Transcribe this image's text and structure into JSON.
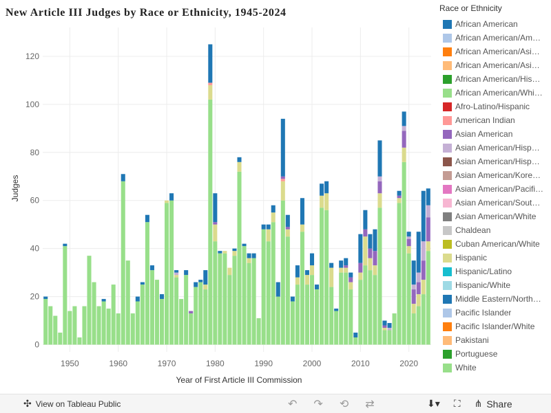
{
  "title": "New Article III Judges by Race or Ethnicity, 1945-2024",
  "legend_title": "Race or Ethnicity",
  "toolbar": {
    "view_label": "View on Tableau Public",
    "share_label": "Share",
    "undo_icon": "undo-icon",
    "redo_icon": "redo-icon",
    "revert_icon": "revert-icon",
    "refresh_icon": "refresh-icon",
    "download_icon": "download-icon",
    "fullscreen_icon": "fullscreen-icon",
    "share_icon": "share-icon",
    "tableau_icon": "tableau-logo-icon"
  },
  "legend": [
    {
      "label": "African American",
      "color": "#1f77b4"
    },
    {
      "label": "African American/Am…",
      "color": "#aec7e8"
    },
    {
      "label": "African American/Asi…",
      "color": "#ff7f0e"
    },
    {
      "label": "African American/Asi…",
      "color": "#ffbb78"
    },
    {
      "label": "African American/His…",
      "color": "#2ca02c"
    },
    {
      "label": "African American/Whi…",
      "color": "#98df8a"
    },
    {
      "label": "Afro-Latino/Hispanic",
      "color": "#d62728"
    },
    {
      "label": "American Indian",
      "color": "#ff9896"
    },
    {
      "label": "Asian American",
      "color": "#9467bd"
    },
    {
      "label": "Asian American/Hisp…",
      "color": "#c5b0d5"
    },
    {
      "label": "Asian American/Hisp…",
      "color": "#8c564b"
    },
    {
      "label": "Asian American/Kore…",
      "color": "#c49c94"
    },
    {
      "label": "Asian American/Pacifi…",
      "color": "#e377c2"
    },
    {
      "label": "Asian American/Sout…",
      "color": "#f7b6d2"
    },
    {
      "label": "Asian American/White",
      "color": "#7f7f7f"
    },
    {
      "label": "Chaldean",
      "color": "#c7c7c7"
    },
    {
      "label": "Cuban American/White",
      "color": "#bcbd22"
    },
    {
      "label": "Hispanic",
      "color": "#dbdb8d"
    },
    {
      "label": "Hispanic/Latino",
      "color": "#17becf"
    },
    {
      "label": "Hispanic/White",
      "color": "#9edae5"
    },
    {
      "label": "Middle Eastern/North…",
      "color": "#1f77b4"
    },
    {
      "label": "Pacific Islander",
      "color": "#aec7e8"
    },
    {
      "label": "Pacific Islander/White",
      "color": "#ff7f0e"
    },
    {
      "label": "Pakistani",
      "color": "#ffbb78"
    },
    {
      "label": "Portuguese",
      "color": "#2ca02c"
    },
    {
      "label": "White",
      "color": "#98df8a"
    }
  ],
  "chart_data": {
    "type": "bar",
    "stacked": true,
    "xlabel": "Year of First Article III Commission",
    "ylabel": "Judges",
    "xlim": [
      1944.4,
      2024.6
    ],
    "ylim": [
      -3,
      132
    ],
    "xticks": [
      1950,
      1960,
      1970,
      1980,
      1990,
      2000,
      2010,
      2020
    ],
    "yticks": [
      0,
      20,
      40,
      60,
      80,
      100,
      120
    ],
    "grid": true,
    "stack_order": [
      "White",
      "Hispanic",
      "American Indian",
      "Asian American",
      "Other",
      "African American"
    ],
    "series_colors": {
      "White": "#98df8a",
      "Hispanic": "#dbdb8d",
      "American Indian": "#ff9896",
      "Asian American": "#9467bd",
      "Other": "#c5b0d5",
      "African American": "#1f77b4"
    },
    "data": [
      {
        "year": 1945,
        "White": 19,
        "African American": 1
      },
      {
        "year": 1946,
        "White": 16
      },
      {
        "year": 1947,
        "White": 12
      },
      {
        "year": 1948,
        "White": 5
      },
      {
        "year": 1949,
        "White": 41,
        "African American": 1
      },
      {
        "year": 1950,
        "White": 14
      },
      {
        "year": 1951,
        "White": 16
      },
      {
        "year": 1952,
        "White": 3
      },
      {
        "year": 1953,
        "White": 16
      },
      {
        "year": 1954,
        "White": 37
      },
      {
        "year": 1955,
        "White": 26
      },
      {
        "year": 1956,
        "White": 16
      },
      {
        "year": 1957,
        "White": 18,
        "African American": 1
      },
      {
        "year": 1958,
        "White": 15
      },
      {
        "year": 1959,
        "White": 25
      },
      {
        "year": 1960,
        "White": 13
      },
      {
        "year": 1961,
        "White": 68,
        "African American": 3
      },
      {
        "year": 1962,
        "White": 35
      },
      {
        "year": 1963,
        "White": 13
      },
      {
        "year": 1964,
        "White": 18,
        "African American": 2
      },
      {
        "year": 1965,
        "White": 25,
        "African American": 1
      },
      {
        "year": 1966,
        "White": 51,
        "African American": 3
      },
      {
        "year": 1967,
        "White": 31,
        "African American": 2
      },
      {
        "year": 1968,
        "White": 27
      },
      {
        "year": 1969,
        "White": 19,
        "African American": 2
      },
      {
        "year": 1970,
        "White": 59,
        "Hispanic": 1
      },
      {
        "year": 1971,
        "White": 60,
        "African American": 3
      },
      {
        "year": 1972,
        "White": 28,
        "Hispanic": 1,
        "Other": 1,
        "African American": 1
      },
      {
        "year": 1973,
        "White": 19
      },
      {
        "year": 1974,
        "White": 29,
        "African American": 2
      },
      {
        "year": 1975,
        "White": 13,
        "Asian American": 1
      },
      {
        "year": 1976,
        "White": 24,
        "African American": 2
      },
      {
        "year": 1977,
        "White": 26,
        "African American": 1
      },
      {
        "year": 1978,
        "White": 23,
        "Hispanic": 2,
        "African American": 6
      },
      {
        "year": 1979,
        "White": 102,
        "Hispanic": 6,
        "American Indian": 1,
        "African American": 16
      },
      {
        "year": 1980,
        "White": 43,
        "Hispanic": 7,
        "Asian American": 1,
        "African American": 12
      },
      {
        "year": 1981,
        "White": 38,
        "African American": 1
      },
      {
        "year": 1982,
        "White": 38,
        "Hispanic": 1
      },
      {
        "year": 1983,
        "White": 29,
        "Hispanic": 3
      },
      {
        "year": 1984,
        "White": 37,
        "Hispanic": 2,
        "African American": 1
      },
      {
        "year": 1985,
        "White": 72,
        "Hispanic": 4,
        "African American": 2
      },
      {
        "year": 1986,
        "White": 41,
        "African American": 1
      },
      {
        "year": 1987,
        "White": 34,
        "Hispanic": 2,
        "African American": 2
      },
      {
        "year": 1988,
        "White": 36,
        "African American": 2
      },
      {
        "year": 1989,
        "White": 11
      },
      {
        "year": 1990,
        "White": 48,
        "African American": 2
      },
      {
        "year": 1991,
        "White": 43,
        "Hispanic": 5,
        "African American": 2
      },
      {
        "year": 1992,
        "White": 51,
        "Hispanic": 4,
        "African American": 3
      },
      {
        "year": 1993,
        "White": 20,
        "African American": 6
      },
      {
        "year": 1994,
        "White": 60,
        "Hispanic": 8,
        "American Indian": 1,
        "Asian American": 1,
        "African American": 24
      },
      {
        "year": 1995,
        "White": 45,
        "Hispanic": 3,
        "Asian American": 1,
        "African American": 5
      },
      {
        "year": 1996,
        "White": 18,
        "African American": 2
      },
      {
        "year": 1997,
        "White": 25,
        "Hispanic": 3,
        "African American": 5
      },
      {
        "year": 1998,
        "White": 47,
        "Hispanic": 3,
        "African American": 11
      },
      {
        "year": 1999,
        "White": 25,
        "Hispanic": 4,
        "African American": 2
      },
      {
        "year": 2000,
        "White": 29,
        "Hispanic": 4,
        "African American": 5
      },
      {
        "year": 2001,
        "White": 23,
        "African American": 2
      },
      {
        "year": 2002,
        "White": 57,
        "Hispanic": 5,
        "African American": 5
      },
      {
        "year": 2003,
        "White": 56,
        "Hispanic": 7,
        "African American": 5
      },
      {
        "year": 2004,
        "White": 24,
        "Hispanic": 8,
        "African American": 2
      },
      {
        "year": 2005,
        "White": 14,
        "African American": 1
      },
      {
        "year": 2006,
        "White": 30,
        "Hispanic": 2,
        "African American": 3
      },
      {
        "year": 2007,
        "White": 30,
        "Hispanic": 2,
        "Asian American": 1,
        "African American": 3
      },
      {
        "year": 2008,
        "White": 23,
        "Hispanic": 3,
        "Asian American": 2,
        "African American": 2
      },
      {
        "year": 2009,
        "White": 3,
        "African American": 2
      },
      {
        "year": 2010,
        "White": 27,
        "Hispanic": 3,
        "Asian American": 4,
        "African American": 12
      },
      {
        "year": 2011,
        "White": 33,
        "Hispanic": 12,
        "Asian American": 3,
        "African American": 8
      },
      {
        "year": 2012,
        "White": 31,
        "Hispanic": 5,
        "Asian American": 4,
        "African American": 6
      },
      {
        "year": 2013,
        "White": 29,
        "Hispanic": 4,
        "Asian American": 6,
        "African American": 9
      },
      {
        "year": 2014,
        "White": 57,
        "Hispanic": 6,
        "Asian American": 5,
        "Other": 2,
        "African American": 15
      },
      {
        "year": 2015,
        "White": 6,
        "Hispanic": 1,
        "Asian American": 1,
        "African American": 2
      },
      {
        "year": 2016,
        "White": 6,
        "Other": 1,
        "African American": 2
      },
      {
        "year": 2017,
        "White": 13
      },
      {
        "year": 2018,
        "White": 59,
        "Hispanic": 2,
        "Asian American": 1,
        "African American": 2
      },
      {
        "year": 2019,
        "White": 76,
        "Hispanic": 6,
        "Asian American": 7,
        "Other": 2,
        "African American": 6
      },
      {
        "year": 2020,
        "White": 38,
        "Hispanic": 3,
        "Asian American": 3,
        "Other": 1,
        "African American": 2
      },
      {
        "year": 2021,
        "White": 13,
        "Hispanic": 4,
        "Asian American": 6,
        "Other": 2,
        "African American": 10
      },
      {
        "year": 2022,
        "White": 16,
        "Hispanic": 5,
        "Asian American": 5,
        "Other": 4,
        "African American": 17
      },
      {
        "year": 2023,
        "White": 21,
        "Hispanic": 6,
        "Asian American": 8,
        "Other": 8,
        "African American": 21
      },
      {
        "year": 2024,
        "White": 39,
        "Hispanic": 4,
        "Asian American": 10,
        "Other": 5,
        "African American": 7
      }
    ]
  }
}
